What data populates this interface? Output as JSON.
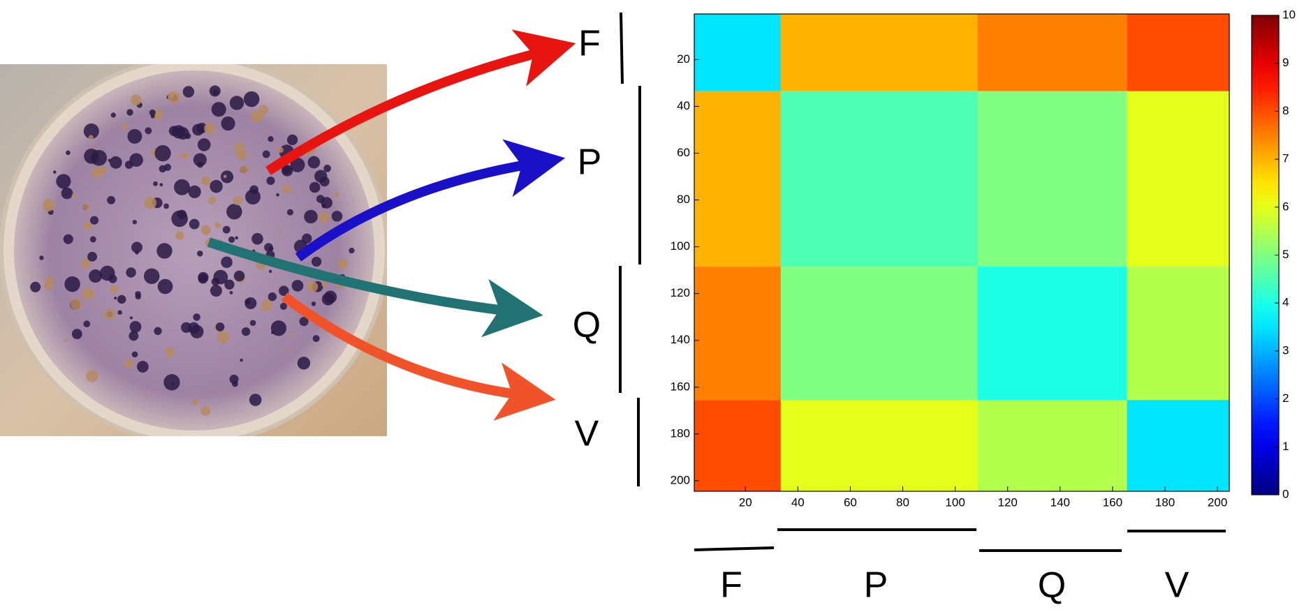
{
  "chart_data": {
    "type": "heatmap",
    "colormap": "jet",
    "groups": [
      {
        "name": "F",
        "start": 1,
        "end": 33
      },
      {
        "name": "P",
        "start": 34,
        "end": 108
      },
      {
        "name": "Q",
        "start": 109,
        "end": 165
      },
      {
        "name": "V",
        "start": 166,
        "end": 204
      }
    ],
    "z": [
      [
        3.5,
        7,
        7.5,
        8
      ],
      [
        7,
        4.5,
        5,
        6
      ],
      [
        7.5,
        5,
        4,
        5.5
      ],
      [
        8,
        6,
        5.5,
        3.5
      ]
    ],
    "xlim": [
      0.5,
      204.5
    ],
    "ylim": [
      0.5,
      204.5
    ],
    "xticks": [
      20,
      40,
      60,
      80,
      100,
      120,
      140,
      160,
      180,
      200
    ],
    "yticks": [
      20,
      40,
      60,
      80,
      100,
      120,
      140,
      160,
      180,
      200
    ],
    "colorbar": {
      "lim": [
        0,
        10
      ],
      "ticks": [
        0,
        1,
        2,
        3,
        4,
        5,
        6,
        7,
        8,
        9,
        10
      ]
    }
  }
}
